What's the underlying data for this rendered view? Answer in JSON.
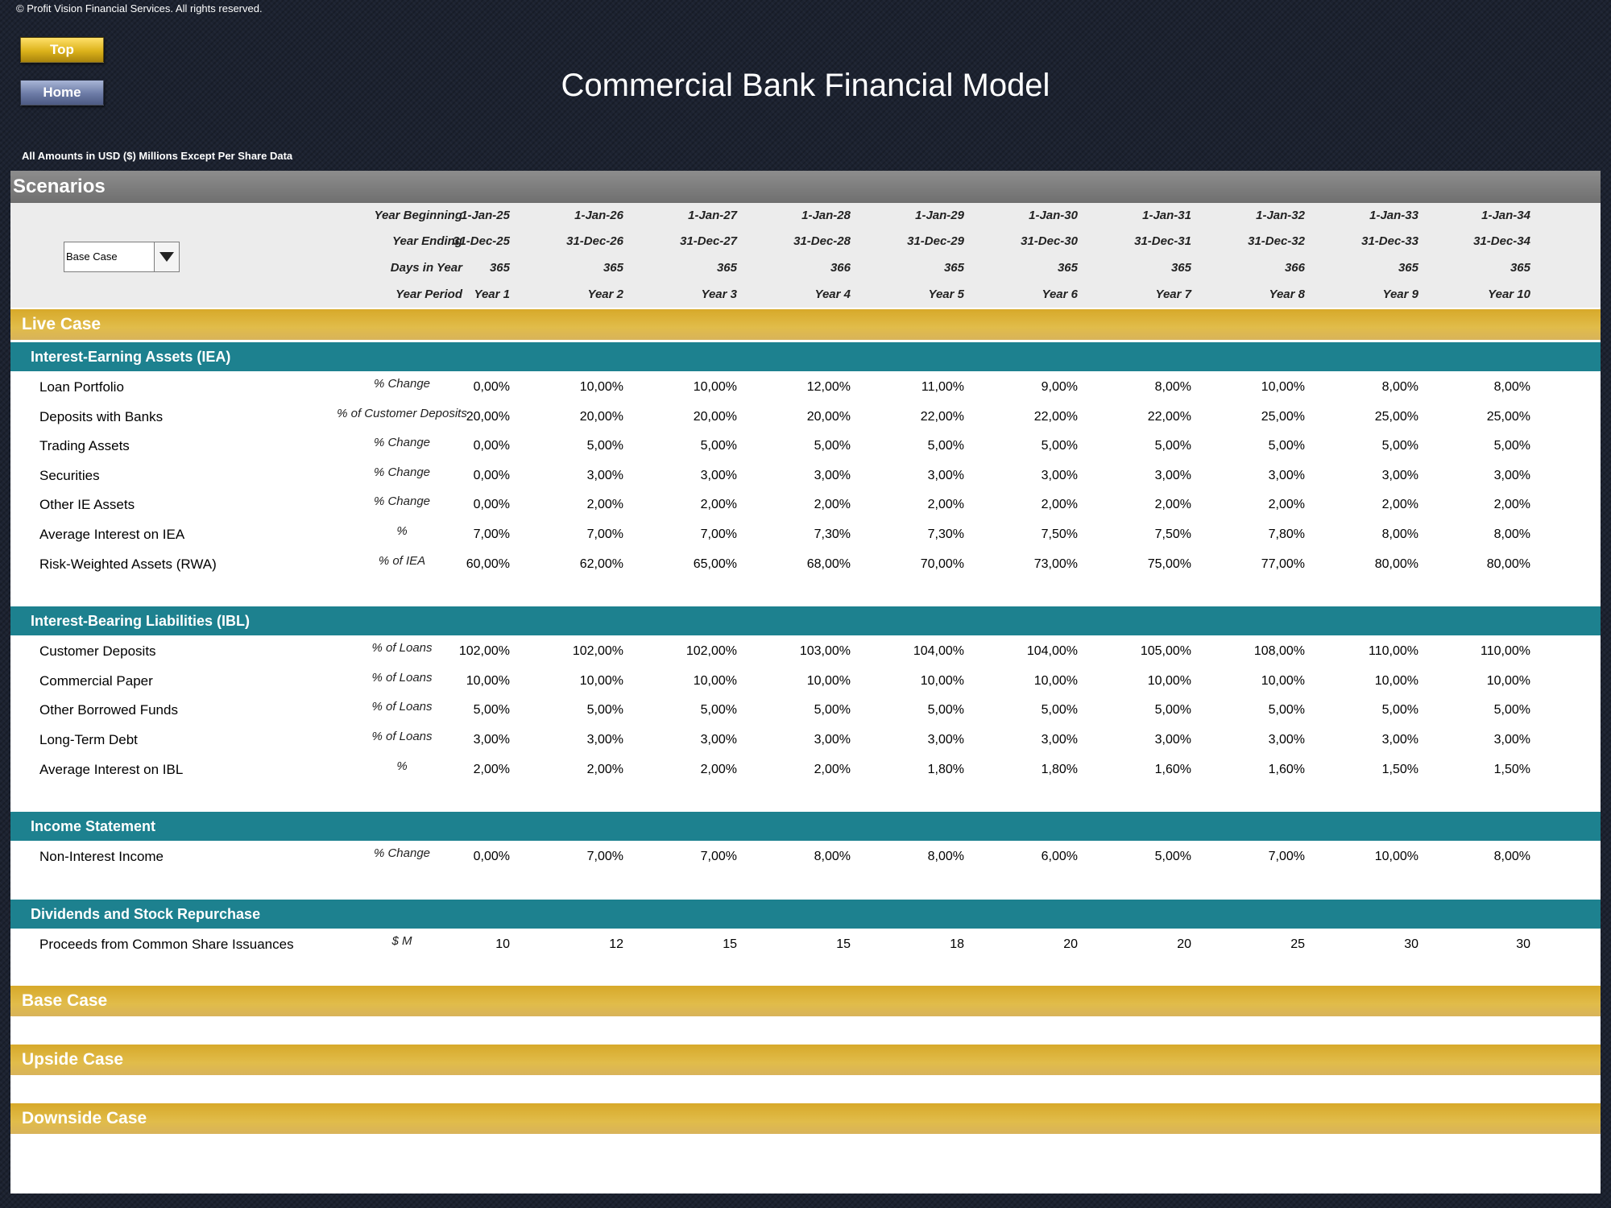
{
  "copyright": "© Profit Vision Financial Services. All rights reserved.",
  "nav": {
    "top_label": "Top",
    "home_label": "Home"
  },
  "title": "Commercial Bank Financial Model",
  "units_note": "All Amounts in  USD ($) Millions Except Per Share Data",
  "scenarios": {
    "bar_label": "Scenarios",
    "selector": {
      "selected": "Base Case",
      "icon": "chevron-down-icon"
    }
  },
  "header_labels": {
    "year_beginning": "Year Beginning",
    "year_ending": "Year Ending",
    "days_in_year": "Days in Year",
    "year_period": "Year Period"
  },
  "years": {
    "beginning": [
      "1-Jan-25",
      "1-Jan-26",
      "1-Jan-27",
      "1-Jan-28",
      "1-Jan-29",
      "1-Jan-30",
      "1-Jan-31",
      "1-Jan-32",
      "1-Jan-33",
      "1-Jan-34"
    ],
    "ending": [
      "31-Dec-25",
      "31-Dec-26",
      "31-Dec-27",
      "31-Dec-28",
      "31-Dec-29",
      "31-Dec-30",
      "31-Dec-31",
      "31-Dec-32",
      "31-Dec-33",
      "31-Dec-34"
    ],
    "days": [
      "365",
      "365",
      "365",
      "366",
      "365",
      "365",
      "365",
      "366",
      "365",
      "365"
    ],
    "period": [
      "Year 1",
      "Year 2",
      "Year 3",
      "Year 4",
      "Year 5",
      "Year 6",
      "Year 7",
      "Year 8",
      "Year 9",
      "Year 10"
    ]
  },
  "live_case": {
    "title": "Live Case",
    "sections": [
      {
        "title": "Interest-Earning Assets (IEA)",
        "rows": [
          {
            "label": "Loan Portfolio",
            "unit": "% Change",
            "values": [
              "0,00%",
              "10,00%",
              "10,00%",
              "12,00%",
              "11,00%",
              "9,00%",
              "8,00%",
              "10,00%",
              "8,00%",
              "8,00%"
            ]
          },
          {
            "label": "Deposits with Banks",
            "unit": "% of Customer Deposits",
            "values": [
              "20,00%",
              "20,00%",
              "20,00%",
              "20,00%",
              "22,00%",
              "22,00%",
              "22,00%",
              "25,00%",
              "25,00%",
              "25,00%"
            ]
          },
          {
            "label": "Trading Assets",
            "unit": "% Change",
            "values": [
              "0,00%",
              "5,00%",
              "5,00%",
              "5,00%",
              "5,00%",
              "5,00%",
              "5,00%",
              "5,00%",
              "5,00%",
              "5,00%"
            ]
          },
          {
            "label": "Securities",
            "unit": "% Change",
            "values": [
              "0,00%",
              "3,00%",
              "3,00%",
              "3,00%",
              "3,00%",
              "3,00%",
              "3,00%",
              "3,00%",
              "3,00%",
              "3,00%"
            ]
          },
          {
            "label": "Other IE Assets",
            "unit": "% Change",
            "values": [
              "0,00%",
              "2,00%",
              "2,00%",
              "2,00%",
              "2,00%",
              "2,00%",
              "2,00%",
              "2,00%",
              "2,00%",
              "2,00%"
            ]
          },
          {
            "label": "Average Interest on IEA",
            "unit": "%",
            "values": [
              "7,00%",
              "7,00%",
              "7,00%",
              "7,30%",
              "7,30%",
              "7,50%",
              "7,50%",
              "7,80%",
              "8,00%",
              "8,00%"
            ]
          },
          {
            "label": "Risk-Weighted Assets (RWA)",
            "unit": "% of IEA",
            "values": [
              "60,00%",
              "62,00%",
              "65,00%",
              "68,00%",
              "70,00%",
              "73,00%",
              "75,00%",
              "77,00%",
              "80,00%",
              "80,00%"
            ]
          }
        ]
      },
      {
        "title": "Interest-Bearing Liabilities (IBL)",
        "rows": [
          {
            "label": "Customer Deposits",
            "unit": "% of Loans",
            "values": [
              "102,00%",
              "102,00%",
              "102,00%",
              "103,00%",
              "104,00%",
              "104,00%",
              "105,00%",
              "108,00%",
              "110,00%",
              "110,00%"
            ]
          },
          {
            "label": "Commercial Paper",
            "unit": "% of Loans",
            "values": [
              "10,00%",
              "10,00%",
              "10,00%",
              "10,00%",
              "10,00%",
              "10,00%",
              "10,00%",
              "10,00%",
              "10,00%",
              "10,00%"
            ]
          },
          {
            "label": "Other Borrowed Funds",
            "unit": "% of Loans",
            "values": [
              "5,00%",
              "5,00%",
              "5,00%",
              "5,00%",
              "5,00%",
              "5,00%",
              "5,00%",
              "5,00%",
              "5,00%",
              "5,00%"
            ]
          },
          {
            "label": "Long-Term Debt",
            "unit": "% of Loans",
            "values": [
              "3,00%",
              "3,00%",
              "3,00%",
              "3,00%",
              "3,00%",
              "3,00%",
              "3,00%",
              "3,00%",
              "3,00%",
              "3,00%"
            ]
          },
          {
            "label": "Average Interest on IBL",
            "unit": "%",
            "values": [
              "2,00%",
              "2,00%",
              "2,00%",
              "2,00%",
              "1,80%",
              "1,80%",
              "1,60%",
              "1,60%",
              "1,50%",
              "1,50%"
            ]
          }
        ]
      },
      {
        "title": "Income Statement",
        "rows": [
          {
            "label": "Non-Interest Income",
            "unit": "% Change",
            "values": [
              "0,00%",
              "7,00%",
              "7,00%",
              "8,00%",
              "8,00%",
              "6,00%",
              "5,00%",
              "7,00%",
              "10,00%",
              "8,00%"
            ]
          }
        ]
      },
      {
        "title": "Dividends and Stock Repurchase",
        "rows": [
          {
            "label": "Proceeds from Common Share Issuances",
            "unit": "$ M",
            "values": [
              "10",
              "12",
              "15",
              "15",
              "18",
              "20",
              "20",
              "25",
              "30",
              "30"
            ]
          }
        ]
      }
    ]
  },
  "other_cases": [
    "Base Case",
    "Upside Case",
    "Downside Case"
  ],
  "colors": {
    "gold": "#d7a92a",
    "teal": "#1d818f",
    "scenario_grey": "#7f7f7f",
    "background": "#1c2230"
  }
}
